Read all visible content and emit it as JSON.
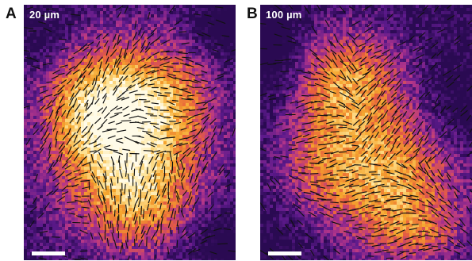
{
  "figure": {
    "panels": [
      {
        "letter": "A",
        "scale_label": "20 µm",
        "colormap": [
          "#2a0a52",
          "#5d1a8c",
          "#b3358a",
          "#e8603d",
          "#f5a52d",
          "#fde08f",
          "#fffbe8"
        ],
        "glyph_color": "#111111",
        "mark_color": "#ffffff"
      },
      {
        "letter": "B",
        "scale_label": "100 µm",
        "colormap": [
          "#2a0a52",
          "#5d1a8c",
          "#b3358a",
          "#e8603d",
          "#f5a52d",
          "#fde08f",
          "#fffbe8"
        ],
        "glyph_color": "#111111",
        "mark_color": "#ffffff"
      }
    ]
  }
}
